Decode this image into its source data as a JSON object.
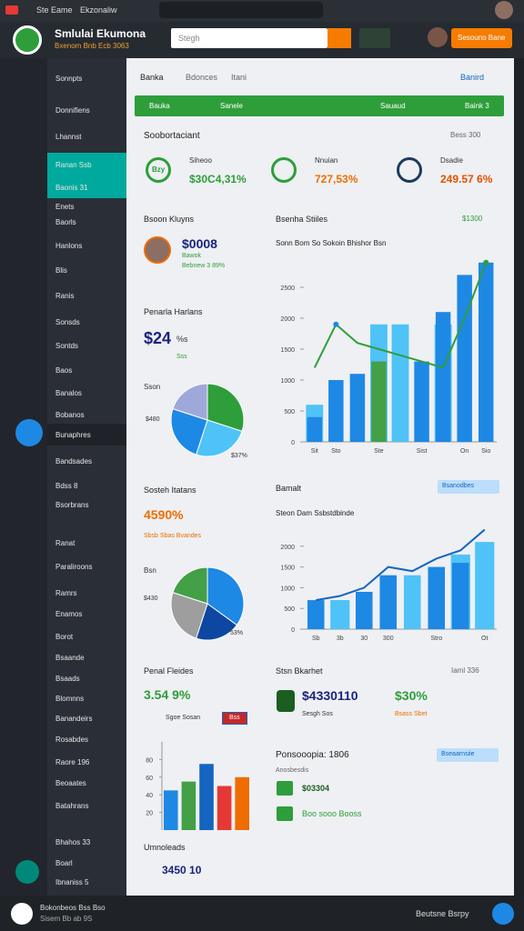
{
  "browser": {
    "tab": "Ste Eame",
    "tab2": "Ekzonaliw"
  },
  "header": {
    "app_name": "Smlulai Ekumona",
    "subtitle": "Bxenom Bnb Ecb 3063",
    "search": "Stegh",
    "button": "Sesouno Bane"
  },
  "sidebar": [
    "Sonnpts",
    "Donnifiens",
    "Lhannst",
    "Ranan Ssb",
    "Baonis 31",
    "Enets",
    "Baorls",
    "Hanlons",
    "Blis",
    "Ranis",
    "Sonsds",
    "Sontds",
    "Baos",
    "Banalos",
    "Bobanos",
    "Bunaphres",
    "Bandsades",
    "Bdss 8",
    "Bsorbrans",
    "Ranat",
    "Paraliroons",
    "Ramrs",
    "Enamos",
    "Borot",
    "Bsaande",
    "Bsaads",
    "Blomnns",
    "Banandeirs",
    "Rosabdes",
    "Raore 196",
    "Beoaates",
    "Batahrans",
    "Bhahos 33",
    "Boarl",
    "Ibnaniss 5"
  ],
  "breadcrumb": {
    "items": [
      "Banka",
      "Bdonces",
      "Itani"
    ],
    "action": "Banird"
  },
  "banner": {
    "items": [
      "Bauka",
      "Sanele",
      "Sauaud",
      "Baink 3"
    ]
  },
  "overview": {
    "title": "Soobortaciant",
    "action": "Bess 300",
    "metrics": [
      {
        "icon": "Bzy",
        "label": "Siheoo",
        "value": "$30C4,31%"
      },
      {
        "label": "Nnuian",
        "value": "727,53%"
      },
      {
        "label": "Dsadie",
        "value": "249.57 6%"
      }
    ]
  },
  "profile": {
    "title": "Bsoon Kluyns",
    "value": "$0008",
    "label": "Bawok",
    "sub": "Bebnew 3 89%"
  },
  "pie_card_1": {
    "title": "Penarla Harlans",
    "value": "$24",
    "unit": "%s",
    "note": "Sss",
    "caption": "Sson",
    "values": [
      30,
      25,
      25,
      20
    ],
    "colors": [
      "#2e9e3a",
      "#4fc3f7",
      "#1e88e5",
      "#9fa8da"
    ],
    "labels": [
      "$480",
      "$37%"
    ]
  },
  "pie_card_2": {
    "title": "Sosteh Itatans",
    "value": "4590%",
    "legend": "Sbsb Sbas Bvandes",
    "caption": "Bsn",
    "values": [
      35,
      20,
      25,
      20
    ],
    "colors": [
      "#1e88e5",
      "#0d47a1",
      "#9e9e9e",
      "#43a047"
    ],
    "labels": [
      "$430",
      "53%"
    ]
  },
  "bars_card": {
    "title": "Penal Fleides",
    "value": "3.54 9%",
    "tag": "Sgoe Sosan",
    "badge": "Bss",
    "footer": "Umnoleads",
    "footer_value": "3450 10",
    "values": [
      45,
      55,
      75,
      50,
      60
    ],
    "colors": [
      "#1e88e5",
      "#43a047",
      "#1565c0",
      "#e53935",
      "#ef6c00"
    ],
    "ylim": [
      0,
      100
    ],
    "yticks": [
      20,
      40,
      60,
      80
    ]
  },
  "sales_chart": {
    "title": "Bsenha Stiiles",
    "action": "$1300",
    "subtitle": "Sonn Bom So Sokoin Bhishor Bsn",
    "categories": [
      "Sit",
      "Sto",
      null,
      "Ste",
      null,
      "Sist",
      null,
      "On",
      "Sio"
    ],
    "bars": [
      400,
      1000,
      1100,
      1300,
      1800,
      1300,
      2100,
      2700,
      2900
    ],
    "bar_colors": [
      "#1e88e5",
      "#1e88e5",
      "#1e88e5",
      "#43a047",
      "#4fc3f7",
      "#1e88e5",
      "#1e88e5",
      "#1e88e5",
      "#1e88e5"
    ],
    "highlights": [
      600,
      null,
      null,
      1900,
      1900,
      null,
      1900,
      null,
      null
    ],
    "line": [
      1200,
      1900,
      1600,
      1500,
      1400,
      1300,
      1200,
      2000,
      2900
    ],
    "ylim": [
      0,
      3000
    ],
    "yticks": [
      0,
      500,
      1000,
      1500,
      2000,
      2500
    ]
  },
  "bar_chart": {
    "title": "Bamalt",
    "action": "Bsanodbes",
    "subtitle": "Steon Dam Ssbstdbinde",
    "categories": [
      "Sb",
      "3b",
      "30",
      "300",
      null,
      "Stro",
      null,
      "Ot"
    ],
    "bars": [
      700,
      700,
      900,
      1300,
      1300,
      1500,
      1600,
      2100
    ],
    "highlights": [
      null,
      700,
      null,
      null,
      null,
      null,
      1800,
      2100
    ],
    "line": [
      700,
      800,
      1000,
      1500,
      1400,
      1700,
      1900,
      2400
    ],
    "ylim": [
      0,
      2500
    ],
    "yticks": [
      0,
      500,
      1000,
      1500,
      2000
    ]
  },
  "market": {
    "title": "Stsn Bkarhet",
    "action": "Iaml 336",
    "value": "$4330110",
    "value_note": "Sesgh Sos",
    "rate": "$30%",
    "rate_note": "Bsass Sbet"
  },
  "products": {
    "title": "Ponsooopia: 1806",
    "action": "Bseaarnsiie",
    "subtitle": "Anosbesdis",
    "rows": [
      "$03304",
      "Boo sooo Booss"
    ]
  },
  "footer": {
    "user": "Bokonbeos Bss Bso",
    "user_sub": "Sisem Bb ab 9S",
    "action": "Beutsne Bsrpy"
  }
}
